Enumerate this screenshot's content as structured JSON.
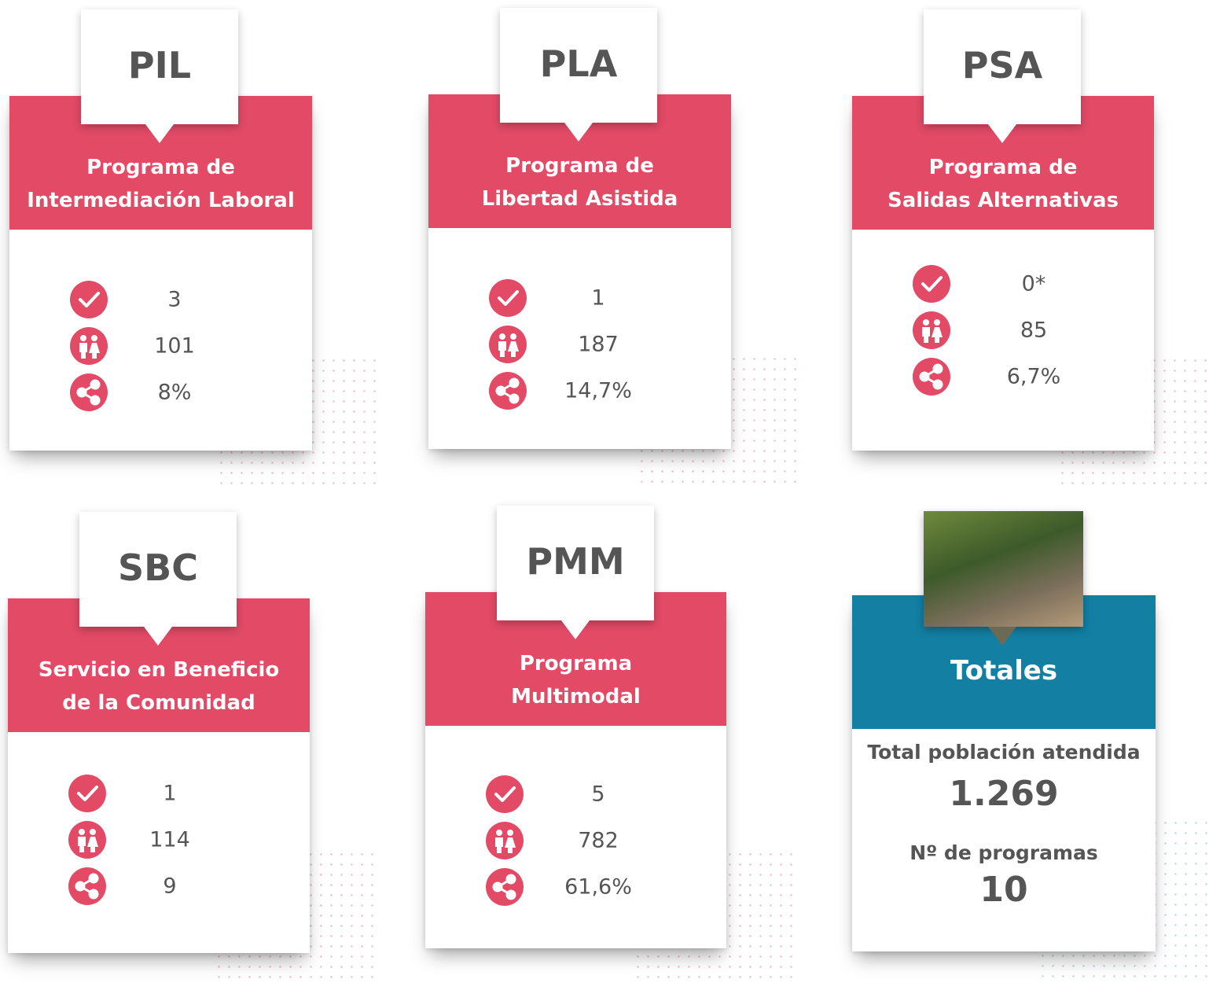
{
  "cards": [
    {
      "code": "PIL",
      "title": [
        "Programa de",
        "Intermediación Laboral"
      ],
      "stats": [
        "3",
        "101",
        "8%"
      ]
    },
    {
      "code": "PLA",
      "title": [
        "Programa de",
        "Libertad Asistida"
      ],
      "stats": [
        "1",
        "187",
        "14,7%"
      ]
    },
    {
      "code": "PSA",
      "title": [
        "Programa de",
        "Salidas Alternativas"
      ],
      "stats": [
        "0*",
        "85",
        "6,7%"
      ]
    },
    {
      "code": "SBC",
      "title": [
        "Servicio en Beneficio",
        "de la Comunidad"
      ],
      "stats": [
        "1",
        "114",
        "9"
      ]
    },
    {
      "code": "PMM",
      "title": [
        "Programa",
        "Multimodal"
      ],
      "stats": [
        "5",
        "782",
        "61,6%"
      ]
    }
  ],
  "totals": {
    "title": "Totales",
    "population_label": "Total población atendida",
    "population": "1.269",
    "programs_label": "Nº de programas",
    "programs": "10"
  }
}
